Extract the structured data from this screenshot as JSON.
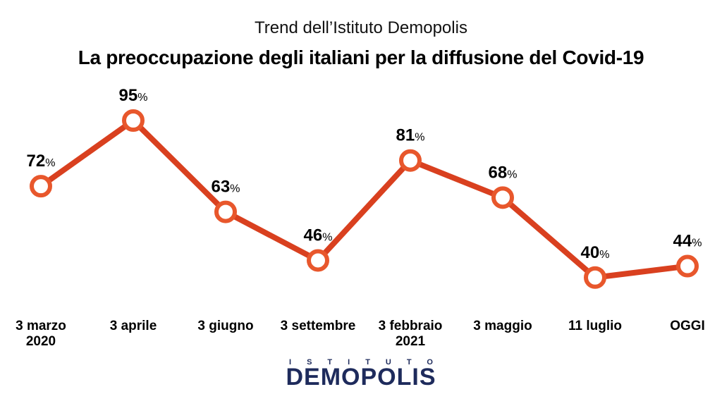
{
  "header": {
    "subtitle": "Trend dell’Istituto Demopolis",
    "title": "La preoccupazione degli italiani per la diffusione del Covid-19"
  },
  "chart_data": {
    "type": "line",
    "categories": [
      [
        "3 marzo",
        "2020"
      ],
      [
        "3 aprile"
      ],
      [
        "3 giugno"
      ],
      [
        "3 settembre"
      ],
      [
        "3 febbraio",
        "2021"
      ],
      [
        "3 maggio"
      ],
      [
        "11 luglio"
      ],
      [
        "OGGI"
      ]
    ],
    "values": [
      72,
      95,
      63,
      46,
      81,
      68,
      40,
      44
    ],
    "value_suffix": "%",
    "line_color": "#d9401f",
    "marker_fill": "#ffffff",
    "marker_stroke": "#e8572c",
    "grid": false,
    "legend": false
  },
  "logo": {
    "top_text": "ISTITUTO",
    "main_text": "DEMOPOLIS",
    "primary_color": "#1e2b5c",
    "accent_color": "#e07a1f"
  }
}
